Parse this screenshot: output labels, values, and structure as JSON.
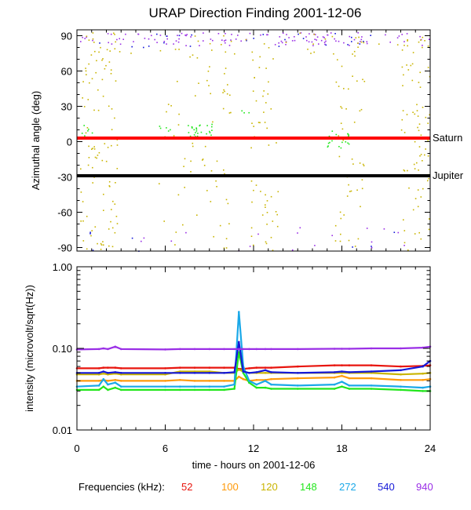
{
  "title": "URAP Direction Finding  2001-12-06",
  "xlabel": "time - hours on 2001-12-06",
  "legend_label": "Frequencies (kHz):",
  "frequencies": [
    {
      "label": "52",
      "color": "#e8150e"
    },
    {
      "label": "100",
      "color": "#ff9a0a"
    },
    {
      "label": "120",
      "color": "#c9b400"
    },
    {
      "label": "148",
      "color": "#22e61c"
    },
    {
      "label": "272",
      "color": "#1aa8e8"
    },
    {
      "label": "540",
      "color": "#1418d8"
    },
    {
      "label": "940",
      "color": "#9a2ee6"
    }
  ],
  "chart_data": [
    {
      "type": "scatter",
      "ylabel": "Azimuthal angle (deg)",
      "xlim": [
        0,
        24
      ],
      "ylim": [
        -93,
        95
      ],
      "xticks": [
        "0",
        "6",
        "12",
        "18",
        "24"
      ],
      "yticks": [
        "90",
        "60",
        "30",
        "0",
        "-30",
        "-60",
        "-90"
      ],
      "reference_lines": [
        {
          "label": "Saturn",
          "y": 3,
          "color": "#ff0000"
        },
        {
          "label": "Jupiter",
          "y": -29,
          "color": "#000000"
        }
      ],
      "clusters": [
        {
          "freq": "940",
          "x": [
            0,
            24
          ],
          "y": [
            82,
            93
          ],
          "n": 120
        },
        {
          "freq": "540",
          "x": [
            0,
            24
          ],
          "y": [
            80,
            93
          ],
          "n": 25
        },
        {
          "freq": "120",
          "x": [
            0,
            24
          ],
          "y": [
            74,
            93
          ],
          "n": 40
        },
        {
          "freq": "120",
          "x": [
            0.2,
            2.8
          ],
          "y": [
            -92,
            92
          ],
          "n": 95
        },
        {
          "freq": "120",
          "x": [
            5.5,
            10.5
          ],
          "y": [
            -92,
            92
          ],
          "n": 70
        },
        {
          "freq": "120",
          "x": [
            11.8,
            13.8
          ],
          "y": [
            -92,
            92
          ],
          "n": 55
        },
        {
          "freq": "120",
          "x": [
            17.5,
            19.5
          ],
          "y": [
            -92,
            92
          ],
          "n": 50
        },
        {
          "freq": "120",
          "x": [
            22.0,
            24.0
          ],
          "y": [
            -92,
            92
          ],
          "n": 75
        },
        {
          "freq": "148",
          "x": [
            7.2,
            9.2
          ],
          "y": [
            2,
            16
          ],
          "n": 32
        },
        {
          "freq": "148",
          "x": [
            16.9,
            18.5
          ],
          "y": [
            -5,
            10
          ],
          "n": 22
        },
        {
          "freq": "148",
          "x": [
            0.1,
            1.3
          ],
          "y": [
            5,
            15
          ],
          "n": 6
        },
        {
          "freq": "148",
          "x": [
            5.5,
            6.5
          ],
          "y": [
            9,
            14
          ],
          "n": 5
        },
        {
          "freq": "148",
          "x": [
            10.5,
            11.8
          ],
          "y": [
            25,
            32
          ],
          "n": 3
        },
        {
          "freq": "940",
          "x": [
            0,
            24
          ],
          "y": [
            -93,
            -72
          ],
          "n": 18
        },
        {
          "freq": "540",
          "x": [
            0,
            24
          ],
          "y": [
            -93,
            -72
          ],
          "n": 8
        }
      ]
    },
    {
      "type": "line",
      "ylabel": "intensity (microvolt/sqrt(Hz))",
      "scale": "log",
      "xlim": [
        0,
        24
      ],
      "ylim": [
        0.01,
        1.0
      ],
      "xticks": [
        "0",
        "6",
        "12",
        "18",
        "24"
      ],
      "yticks": [
        "1.00",
        "0.10",
        "0.01"
      ],
      "x": [
        0,
        1.5,
        1.8,
        2.1,
        2.6,
        3,
        6,
        7,
        8,
        9,
        10,
        10.7,
        11.0,
        11.3,
        11.7,
        12.2,
        12.8,
        13.2,
        15,
        17.5,
        18.0,
        18.5,
        20,
        22,
        23.5,
        24
      ],
      "series": [
        {
          "name": "52",
          "values": [
            0.057,
            0.057,
            0.058,
            0.058,
            0.058,
            0.057,
            0.057,
            0.058,
            0.058,
            0.058,
            0.058,
            0.058,
            0.056,
            0.056,
            0.057,
            0.058,
            0.058,
            0.058,
            0.06,
            0.062,
            0.062,
            0.062,
            0.062,
            0.06,
            0.061,
            0.062
          ]
        },
        {
          "name": "100",
          "values": [
            0.04,
            0.04,
            0.041,
            0.04,
            0.041,
            0.04,
            0.04,
            0.041,
            0.04,
            0.04,
            0.04,
            0.04,
            0.045,
            0.042,
            0.04,
            0.041,
            0.041,
            0.042,
            0.043,
            0.044,
            0.046,
            0.043,
            0.043,
            0.041,
            0.041,
            0.042
          ]
        },
        {
          "name": "120",
          "values": [
            0.048,
            0.048,
            0.049,
            0.048,
            0.049,
            0.048,
            0.048,
            0.052,
            0.052,
            0.052,
            0.05,
            0.05,
            0.055,
            0.052,
            0.05,
            0.05,
            0.05,
            0.05,
            0.05,
            0.05,
            0.05,
            0.05,
            0.05,
            0.048,
            0.049,
            0.05
          ]
        },
        {
          "name": "148",
          "values": [
            0.031,
            0.031,
            0.034,
            0.031,
            0.033,
            0.031,
            0.031,
            0.031,
            0.031,
            0.031,
            0.031,
            0.032,
            0.09,
            0.05,
            0.038,
            0.033,
            0.033,
            0.032,
            0.032,
            0.032,
            0.034,
            0.032,
            0.032,
            0.031,
            0.03,
            0.03
          ]
        },
        {
          "name": "272",
          "values": [
            0.034,
            0.035,
            0.042,
            0.036,
            0.038,
            0.034,
            0.034,
            0.034,
            0.034,
            0.034,
            0.034,
            0.036,
            0.28,
            0.06,
            0.04,
            0.036,
            0.04,
            0.036,
            0.035,
            0.036,
            0.039,
            0.035,
            0.035,
            0.034,
            0.033,
            0.034
          ]
        },
        {
          "name": "540",
          "values": [
            0.05,
            0.05,
            0.052,
            0.05,
            0.051,
            0.05,
            0.05,
            0.05,
            0.05,
            0.05,
            0.05,
            0.051,
            0.12,
            0.052,
            0.05,
            0.051,
            0.054,
            0.051,
            0.05,
            0.051,
            0.052,
            0.051,
            0.052,
            0.054,
            0.06,
            0.07
          ]
        },
        {
          "name": "940",
          "values": [
            0.097,
            0.098,
            0.1,
            0.098,
            0.105,
            0.098,
            0.097,
            0.098,
            0.098,
            0.098,
            0.098,
            0.098,
            0.098,
            0.098,
            0.098,
            0.098,
            0.098,
            0.098,
            0.098,
            0.099,
            0.099,
            0.099,
            0.1,
            0.1,
            0.102,
            0.105
          ]
        }
      ]
    }
  ]
}
